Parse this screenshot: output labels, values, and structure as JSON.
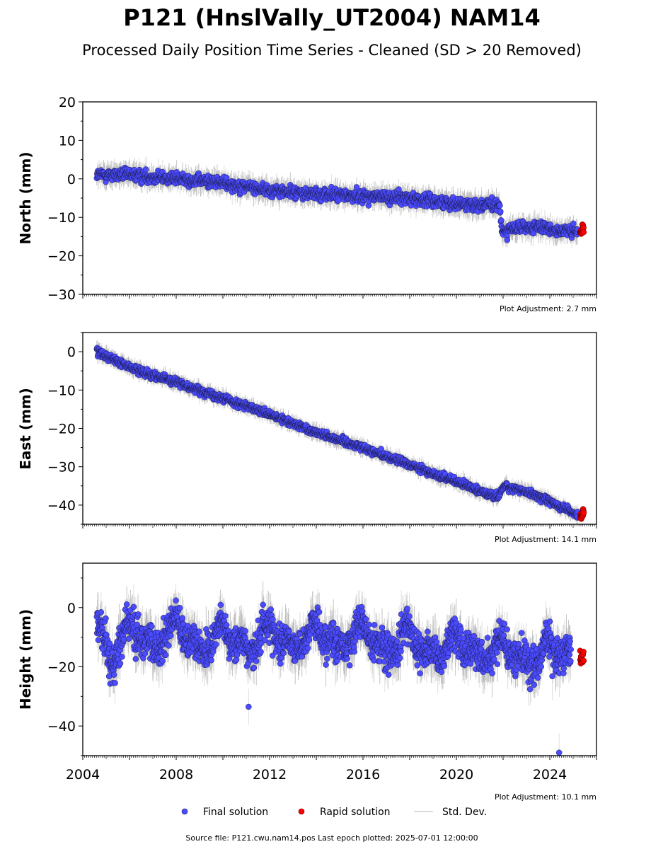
{
  "title": "P121 (HnslVally_UT2004) NAM14",
  "subtitle": "Processed Daily Position Time Series - Cleaned (SD > 20 Removed)",
  "legend": {
    "final_label": "Final solution",
    "rapid_label": "Rapid solution",
    "std_label": "Std. Dev."
  },
  "footer": "Source file: P121.cwu.nam14.pos  Last epoch plotted: 2025-07-01 12:00:00",
  "colors": {
    "final": "#4b4bff",
    "rapid": "#ff0000",
    "stddev": "#bdbdbd"
  },
  "chart_data": [
    {
      "type": "scatter",
      "ylabel": "North (mm)",
      "ylim": [
        -30,
        20
      ],
      "yticks": [
        20,
        10,
        0,
        -10,
        -20,
        -30
      ],
      "xlim": [
        2004.0,
        2026.0
      ],
      "adjustment": "Plot Adjustment: 2.7 mm",
      "series": [
        {
          "values": [
            [
              2004.6,
              1.0
            ],
            [
              2006.0,
              1.0
            ],
            [
              2008.0,
              0.0
            ],
            [
              2010.0,
              -1.0
            ],
            [
              2012.0,
              -3.0
            ],
            [
              2014.0,
              -4.0
            ],
            [
              2016.0,
              -4.5
            ],
            [
              2018.0,
              -5.0
            ],
            [
              2020.0,
              -6.5
            ],
            [
              2021.85,
              -7.0
            ],
            [
              2021.95,
              -13.5
            ],
            [
              2023.0,
              -12.5
            ],
            [
              2024.0,
              -13.0
            ],
            [
              2025.2,
              -14.0
            ]
          ]
        },
        {
          "values": [
            [
              2025.3,
              -14.0
            ],
            [
              2025.45,
              -13.0
            ]
          ]
        }
      ]
    },
    {
      "type": "scatter",
      "ylabel": "East (mm)",
      "ylim": [
        -45,
        5
      ],
      "yticks": [
        0,
        -10,
        -20,
        -30,
        -40
      ],
      "xlim": [
        2004.0,
        2026.0
      ],
      "adjustment": "Plot Adjustment: 14.1 mm",
      "series": [
        {
          "values": [
            [
              2004.6,
              0.0
            ],
            [
              2006.0,
              -4.0
            ],
            [
              2008.0,
              -8.0
            ],
            [
              2010.0,
              -12.0
            ],
            [
              2012.0,
              -16.5
            ],
            [
              2014.0,
              -21.0
            ],
            [
              2016.0,
              -25.0
            ],
            [
              2018.0,
              -29.5
            ],
            [
              2020.0,
              -34.0
            ],
            [
              2021.8,
              -38.0
            ],
            [
              2022.0,
              -35.0
            ],
            [
              2023.0,
              -36.5
            ],
            [
              2024.0,
              -39.0
            ],
            [
              2025.2,
              -42.5
            ]
          ]
        },
        {
          "values": [
            [
              2025.3,
              -43.0
            ],
            [
              2025.45,
              -42.0
            ]
          ]
        }
      ]
    },
    {
      "type": "scatter",
      "ylabel": "Height (mm)",
      "ylim": [
        -50,
        15
      ],
      "yticks": [
        0,
        -20,
        -40
      ],
      "xlim": [
        2004.0,
        2026.0
      ],
      "xticks": [
        2004,
        2008,
        2012,
        2016,
        2020,
        2024
      ],
      "adjustment": "Plot Adjustment: 10.1 mm",
      "series": [
        {
          "values": [
            [
              2004.6,
              -5.0
            ],
            [
              2005.2,
              -18.0
            ],
            [
              2006.1,
              -5.0
            ],
            [
              2007.0,
              -15.0
            ],
            [
              2008.0,
              -5.0
            ],
            [
              2009.0,
              -15.0
            ],
            [
              2010.0,
              -7.0
            ],
            [
              2011.0,
              -15.0
            ],
            [
              2012.0,
              -6.0
            ],
            [
              2013.0,
              -14.0
            ],
            [
              2014.0,
              -6.0
            ],
            [
              2015.0,
              -14.0
            ],
            [
              2016.0,
              -6.0
            ],
            [
              2017.0,
              -16.0
            ],
            [
              2018.0,
              -8.0
            ],
            [
              2019.0,
              -18.0
            ],
            [
              2020.0,
              -10.0
            ],
            [
              2021.0,
              -18.0
            ],
            [
              2022.0,
              -12.0
            ],
            [
              2023.0,
              -20.0
            ],
            [
              2024.0,
              -12.0
            ],
            [
              2024.9,
              -18.0
            ],
            [
              2024.4,
              -49.0
            ],
            [
              2011.1,
              -33.5
            ]
          ]
        },
        {
          "values": [
            [
              2025.3,
              -18.0
            ],
            [
              2025.45,
              -17.0
            ]
          ]
        }
      ]
    }
  ]
}
